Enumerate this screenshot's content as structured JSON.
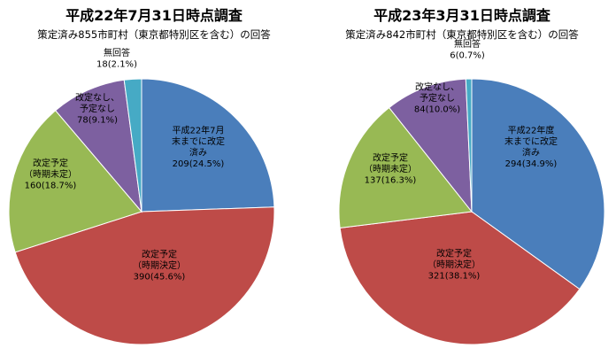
{
  "chart_data": [
    {
      "type": "pie",
      "title": "平成22年7月31日時点調査",
      "subtitle": "策定済み855市町村（東京都特別区を含む）の回答",
      "slices": [
        {
          "label_lines": [
            "平成22年7月",
            "末までに改定",
            "済み"
          ],
          "value_text": "209(24.5%)",
          "value": 209,
          "percent": 24.5,
          "color": "#4a7ebb"
        },
        {
          "label_lines": [
            "改定予定",
            "（時期決定）"
          ],
          "value_text": "390(45.6%)",
          "value": 390,
          "percent": 45.6,
          "color": "#be4b48"
        },
        {
          "label_lines": [
            "改定予定",
            "（時期未定）"
          ],
          "value_text": "160(18.7%)",
          "value": 160,
          "percent": 18.7,
          "color": "#98b954"
        },
        {
          "label_lines": [
            "改定なし、",
            "予定なし"
          ],
          "value_text": "78(9.1%)",
          "value": 78,
          "percent": 9.1,
          "color": "#7d60a0"
        },
        {
          "label_lines": [
            "無回答"
          ],
          "value_text": "18(2.1%)",
          "value": 18,
          "percent": 2.1,
          "color": "#46aac5"
        }
      ]
    },
    {
      "type": "pie",
      "title": "平成23年3月31日時点調査",
      "subtitle": "策定済み842市町村（東京都特別区を含む）の回答",
      "slices": [
        {
          "label_lines": [
            "平成22年度",
            "末までに改定",
            "済み"
          ],
          "value_text": "294(34.9%)",
          "value": 294,
          "percent": 34.9,
          "color": "#4a7ebb"
        },
        {
          "label_lines": [
            "改定予定",
            "（時期決定）"
          ],
          "value_text": "321(38.1%)",
          "value": 321,
          "percent": 38.1,
          "color": "#be4b48"
        },
        {
          "label_lines": [
            "改定予定",
            "（時期未定）"
          ],
          "value_text": "137(16.3%)",
          "value": 137,
          "percent": 16.3,
          "color": "#98b954"
        },
        {
          "label_lines": [
            "改定なし、",
            "予定なし"
          ],
          "value_text": "84(10.0%)",
          "value": 84,
          "percent": 10.0,
          "color": "#7d60a0"
        },
        {
          "label_lines": [
            "無回答"
          ],
          "value_text": "6(0.7%)",
          "value": 6,
          "percent": 0.7,
          "color": "#46aac5"
        }
      ]
    }
  ]
}
